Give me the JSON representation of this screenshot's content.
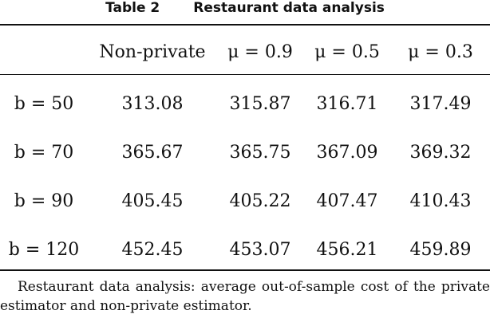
{
  "caption": {
    "label": "Table 2",
    "title": "Restaurant data analysis"
  },
  "table": {
    "columns": [
      "",
      "Non-private",
      "μ = 0.9",
      "μ = 0.5",
      "μ = 0.3"
    ],
    "rows": [
      {
        "label": "b = 50",
        "values": [
          "313.08",
          "315.87",
          "316.71",
          "317.49"
        ]
      },
      {
        "label": "b = 70",
        "values": [
          "365.67",
          "365.75",
          "367.09",
          "369.32"
        ]
      },
      {
        "label": "b = 90",
        "values": [
          "405.45",
          "405.22",
          "407.47",
          "410.43"
        ]
      },
      {
        "label": "b = 120",
        "values": [
          "452.45",
          "453.07",
          "456.21",
          "459.89"
        ]
      }
    ]
  },
  "note": "Restaurant data analysis: average out-of-sample cost of the private estimator and non-private estimator."
}
